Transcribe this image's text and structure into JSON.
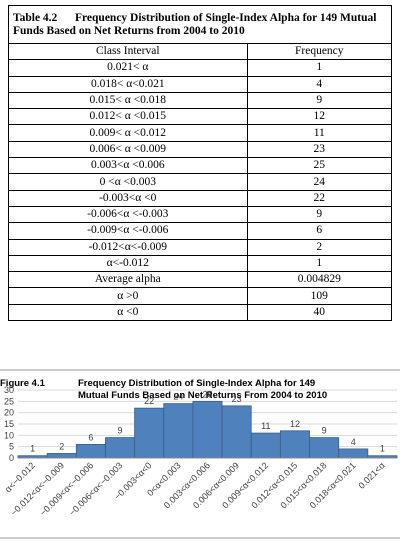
{
  "table": {
    "label": "Table 4.2",
    "title": "Frequency Distribution of Single-Index Alpha for 149 Mutual Funds Based on Net Returns from 2004 to 2010",
    "header": [
      "Class Interval",
      "Frequency"
    ],
    "rows": [
      [
        "0.021< α",
        "1"
      ],
      [
        "0.018< α<0.021",
        "4"
      ],
      [
        "0.015< α <0.018",
        "9"
      ],
      [
        "0.012< α <0.015",
        "12"
      ],
      [
        "0.009< α <0.012",
        "11"
      ],
      [
        "0.006< α <0.009",
        "23"
      ],
      [
        "0.003<α <0.006",
        "25"
      ],
      [
        "0 <α <0.003",
        "24"
      ],
      [
        "-0.003<α <0",
        "22"
      ],
      [
        "-0.006<α <-0.003",
        "9"
      ],
      [
        "-0.009<α <-0.006",
        "6"
      ],
      [
        "-0.012<α<-0.009",
        "2"
      ],
      [
        "α<-0.012",
        "1"
      ],
      [
        "Average alpha",
        "0.004829"
      ],
      [
        "α >0",
        "109"
      ],
      [
        "α <0",
        "40"
      ]
    ]
  },
  "chart_data": {
    "type": "bar",
    "label": "Figure 4.1",
    "title": "Frequency Distribution of Single-Index Alpha for 149 Mutual Funds Based on Net Returns From 2004 to 2010",
    "categories": [
      "α<−0.012",
      "−0.012<α<−0.009",
      "−0.009<α<−0.006",
      "−0.006<α<−0.003",
      "−0.003<α<0",
      "0<α<0.003",
      "0.003<α<0.006",
      "0.006<α<0.009",
      "0.009<α<0.012",
      "0.012<α<0.015",
      "0.015<α<0.018",
      "0.018<α<0.021",
      "0.021<α"
    ],
    "values": [
      1,
      2,
      6,
      9,
      22,
      24,
      25,
      23,
      11,
      12,
      9,
      4,
      1
    ],
    "color": "#4f81bd",
    "ylim": [
      0,
      30
    ],
    "yticks": [
      0,
      5,
      10,
      15,
      20,
      25,
      30
    ]
  }
}
